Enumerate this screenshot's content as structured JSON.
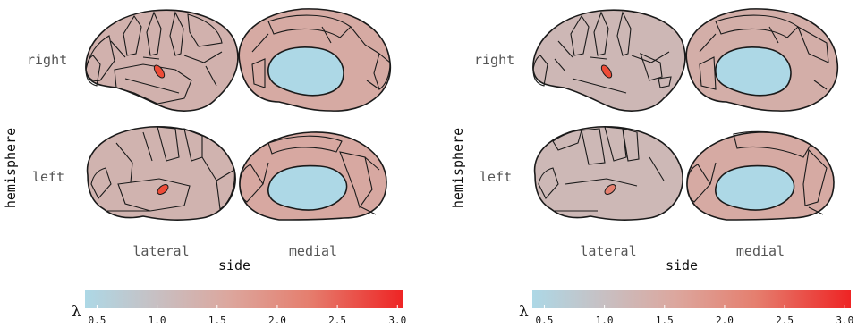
{
  "colors": {
    "low": "#add8e6",
    "mid": "#c9b8b8",
    "high": "#ee2c24"
  },
  "panels": [
    {
      "row_labels": [
        "right",
        "left"
      ],
      "col_labels": [
        "lateral",
        "medial"
      ],
      "y_axis_title": "hemisphere",
      "x_axis_title": "side",
      "legend": {
        "symbol": "λ",
        "ticks": [
          "0.5",
          "1.0",
          "1.5",
          "2.0",
          "2.5",
          "3.0"
        ],
        "range": [
          0.4,
          3.05
        ]
      }
    },
    {
      "row_labels": [
        "right",
        "left"
      ],
      "col_labels": [
        "lateral",
        "medial"
      ],
      "y_axis_title": "hemisphere",
      "x_axis_title": "side",
      "legend": {
        "symbol": "λ",
        "ticks": [
          "0.5",
          "1.0",
          "1.5",
          "2.0",
          "2.5",
          "3.0"
        ],
        "range": [
          0.4,
          3.05
        ]
      }
    }
  ]
}
